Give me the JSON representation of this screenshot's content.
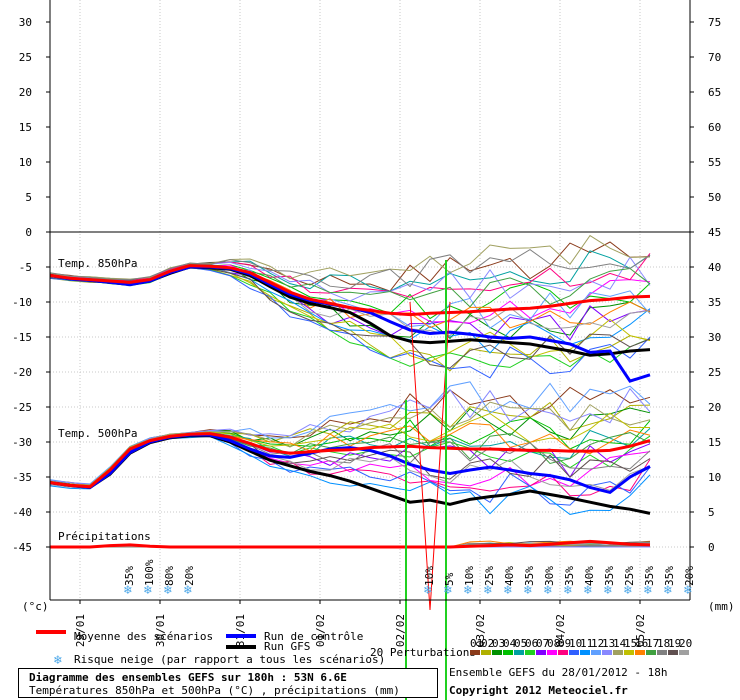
{
  "chart_data": {
    "type": "line",
    "left_axis_unit": "(°c)",
    "right_axis_unit": "(mm)",
    "left_ticks": [
      30,
      25,
      20,
      15,
      10,
      5,
      0,
      -5,
      -10,
      -15,
      -20,
      -25,
      -30,
      -35,
      -40,
      -45
    ],
    "right_ticks": [
      75,
      70,
      65,
      60,
      55,
      50,
      45,
      40,
      35,
      30,
      25,
      20,
      15,
      10,
      5,
      0
    ],
    "date_labels": [
      "29/01",
      "30/01",
      "31/01",
      "01/02",
      "02/02",
      "03/02",
      "04/02",
      "05/02"
    ],
    "panel_labels": {
      "t850": "Temp. 850hPa",
      "t500": "Temp. 500hPa",
      "precip": "Précipitations"
    },
    "snow_risk": [
      {
        "step": 0.6,
        "label": "35%"
      },
      {
        "step": 0.8,
        "label": "100%"
      },
      {
        "step": 1.0,
        "label": "80%"
      },
      {
        "step": 1.2,
        "label": "20%"
      },
      {
        "step": 3.6,
        "label": "10%"
      },
      {
        "step": 3.8,
        "label": "5%"
      },
      {
        "step": 4.0,
        "label": "10%"
      },
      {
        "step": 4.2,
        "label": "25%"
      },
      {
        "step": 4.4,
        "label": "40%"
      },
      {
        "step": 4.6,
        "label": "35%"
      },
      {
        "step": 4.8,
        "label": "30%"
      },
      {
        "step": 5.0,
        "label": "35%"
      },
      {
        "step": 5.2,
        "label": "40%"
      },
      {
        "step": 5.4,
        "label": "35%"
      },
      {
        "step": 5.6,
        "label": "25%"
      },
      {
        "step": 5.8,
        "label": "35%"
      },
      {
        "step": 6.0,
        "label": "35%"
      },
      {
        "step": 6.2,
        "label": "20%"
      }
    ],
    "x_days": [
      0.0,
      0.25,
      0.5,
      0.75,
      1.0,
      1.25,
      1.5,
      1.75,
      2.0,
      2.25,
      2.5,
      2.75,
      3.0,
      3.25,
      3.5,
      3.75,
      4.0,
      4.25,
      4.5,
      4.75,
      5.0,
      5.25,
      5.5,
      5.75,
      6.0,
      6.25,
      6.5,
      6.75,
      7.0,
      7.25,
      7.5
    ],
    "series": {
      "mean_850": [
        -6.2,
        -6.6,
        -6.8,
        -7.0,
        -7.2,
        -6.8,
        -5.6,
        -4.8,
        -4.9,
        -5.1,
        -5.8,
        -7.2,
        -8.6,
        -9.6,
        -10.2,
        -10.8,
        -11.2,
        -11.6,
        -11.8,
        -11.6,
        -11.5,
        -11.4,
        -11.2,
        -11.0,
        -10.9,
        -10.6,
        -10.2,
        -9.8,
        -9.6,
        -9.3,
        -9.2
      ],
      "control_850": [
        -6.2,
        -6.7,
        -6.9,
        -7.2,
        -7.5,
        -7.0,
        -5.8,
        -5.0,
        -5.0,
        -5.2,
        -6.0,
        -7.5,
        -8.9,
        -9.8,
        -10.3,
        -10.8,
        -11.5,
        -12.8,
        -14.0,
        -14.5,
        -14.3,
        -14.6,
        -15.0,
        -15.2,
        -15.0,
        -15.5,
        -16.0,
        -17.2,
        -17.0,
        -21.3,
        -20.4
      ],
      "gfs_850": [
        -6.2,
        -6.7,
        -6.9,
        -7.2,
        -7.5,
        -7.0,
        -5.9,
        -5.0,
        -5.1,
        -5.3,
        -6.2,
        -7.8,
        -9.3,
        -10.2,
        -10.8,
        -11.5,
        -13.0,
        -14.8,
        -15.6,
        -15.8,
        -15.6,
        -15.4,
        -15.6,
        -15.8,
        -16.0,
        -16.5,
        -17.0,
        -17.6,
        -17.4,
        -17.0,
        -16.8
      ],
      "mean_500": [
        -35.8,
        -36.2,
        -36.4,
        -34.0,
        -31.0,
        -29.8,
        -29.2,
        -28.9,
        -28.8,
        -29.3,
        -30.2,
        -31.2,
        -31.6,
        -31.4,
        -31.2,
        -31.1,
        -30.8,
        -30.7,
        -30.6,
        -30.8,
        -30.9,
        -31.0,
        -31.0,
        -31.1,
        -31.2,
        -31.2,
        -31.3,
        -31.3,
        -31.2,
        -30.6,
        -29.8
      ],
      "control_500": [
        -35.8,
        -36.2,
        -36.5,
        -34.5,
        -31.5,
        -30.0,
        -29.3,
        -29.0,
        -29.0,
        -29.8,
        -31.0,
        -32.0,
        -32.2,
        -31.6,
        -31.0,
        -30.8,
        -31.2,
        -32.0,
        -33.2,
        -34.0,
        -34.5,
        -34.0,
        -33.6,
        -34.0,
        -34.5,
        -34.8,
        -35.4,
        -36.5,
        -37.2,
        -35.0,
        -33.5
      ],
      "gfs_500": [
        -35.8,
        -36.2,
        -36.5,
        -34.6,
        -31.6,
        -30.1,
        -29.4,
        -29.1,
        -29.1,
        -30.0,
        -31.3,
        -32.6,
        -33.4,
        -34.2,
        -34.8,
        -35.6,
        -36.6,
        -37.6,
        -38.6,
        -38.3,
        -38.9,
        -38.2,
        -37.8,
        -37.5,
        -37.0,
        -37.5,
        -38.0,
        -38.6,
        -39.2,
        -39.6,
        -40.2
      ],
      "mean_precip": [
        0.0,
        0.0,
        0.0,
        0.2,
        0.3,
        0.1,
        0.0,
        0.0,
        0.0,
        0.0,
        0.0,
        0.0,
        0.0,
        0.0,
        0.0,
        0.0,
        0.0,
        0.0,
        0.0,
        0.0,
        0.0,
        0.1,
        0.2,
        0.3,
        0.2,
        0.4,
        0.6,
        0.8,
        0.6,
        0.4,
        0.3
      ]
    },
    "perturbation_colors": [
      "#8a3a1a",
      "#b0b000",
      "#009000",
      "#00c000",
      "#00a0a0",
      "#20d020",
      "#8000ff",
      "#ff00ff",
      "#ff0080",
      "#3060ff",
      "#0090ff",
      "#60a0ff",
      "#8888ff",
      "#a0a060",
      "#c0c000",
      "#ff8000",
      "#40a040",
      "#808080",
      "#605050",
      "#a0a0a0"
    ]
  },
  "legend": {
    "mean": "Moyenne des scénarios",
    "control": "Run de contrôle",
    "gfs": "Run GFS",
    "snow": "Risque neige (par rapport a tous les scénarios)",
    "perturbations": "20 Perturbations",
    "pert_numbers": [
      "01",
      "02",
      "03",
      "04",
      "05",
      "06",
      "07",
      "08",
      "09",
      "10",
      "11",
      "12",
      "13",
      "14",
      "15",
      "16",
      "17",
      "18",
      "19",
      "20"
    ]
  },
  "info": {
    "title": "Diagramme des ensembles GEFS sur 180h : 53N 6.6E",
    "subtitle": "Températures 850hPa et 500hPa (°C) , précipitations (mm)",
    "run": "Ensemble GEFS du 28/01/2012 - 18h",
    "copyright": "Copyright 2012 Meteociel.fr"
  }
}
